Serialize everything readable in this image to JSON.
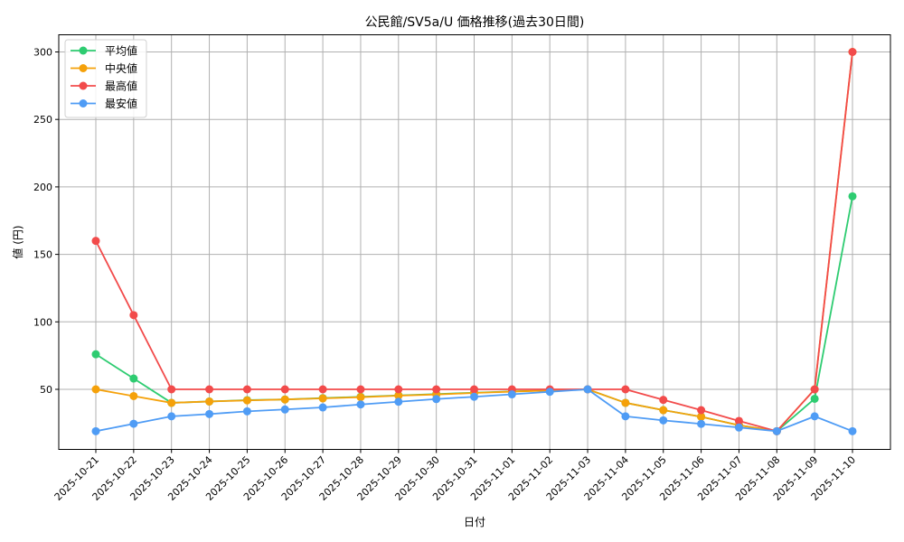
{
  "chart_data": {
    "type": "line",
    "title": "公民館/SV5a/U 価格推移(過去30日間)",
    "xlabel": "日付",
    "ylabel": "値 (円)",
    "ylim": [
      7,
      313
    ],
    "yticks": [
      50,
      100,
      150,
      200,
      250,
      300
    ],
    "grid": true,
    "legend_position": "upper left",
    "categories": [
      "2025-10-21",
      "2025-10-22",
      "2025-10-23",
      "2025-10-24",
      "2025-10-25",
      "2025-10-26",
      "2025-10-27",
      "2025-10-28",
      "2025-10-29",
      "2025-10-30",
      "2025-10-31",
      "2025-11-01",
      "2025-11-02",
      "2025-11-03",
      "2025-11-04",
      "2025-11-05",
      "2025-11-06",
      "2025-11-07",
      "2025-11-08",
      "2025-11-09",
      "2025-11-10"
    ],
    "series": [
      {
        "name": "平均値",
        "color": "#2ecc71",
        "values": [
          76,
          58,
          40,
          41,
          42,
          42.5,
          43.5,
          44.5,
          45.5,
          46.5,
          47.5,
          48.5,
          49.2,
          50,
          40,
          34.6,
          29.7,
          23.4,
          19,
          43,
          193
        ]
      },
      {
        "name": "中央値",
        "color": "#f5a10a",
        "values": [
          50,
          45,
          40,
          41,
          41.8,
          42.5,
          43.3,
          44.2,
          45.3,
          46.2,
          47.3,
          48.3,
          49.2,
          50,
          40,
          34.6,
          29.7,
          23.4,
          19,
          50,
          300
        ]
      },
      {
        "name": "最高値",
        "color": "#f24b4b",
        "values": [
          160,
          105,
          50,
          50,
          50,
          50,
          50,
          50,
          50,
          50,
          50,
          50,
          50,
          50,
          50,
          42.2,
          34.6,
          26.6,
          19,
          50,
          300
        ]
      },
      {
        "name": "最安値",
        "color": "#4f9cf5",
        "values": [
          19,
          24.5,
          30,
          31.7,
          33.7,
          35.1,
          36.6,
          38.8,
          40.8,
          42.8,
          44.5,
          46.3,
          48.2,
          50,
          30,
          27,
          24.4,
          21.7,
          19,
          30,
          19
        ]
      }
    ]
  }
}
